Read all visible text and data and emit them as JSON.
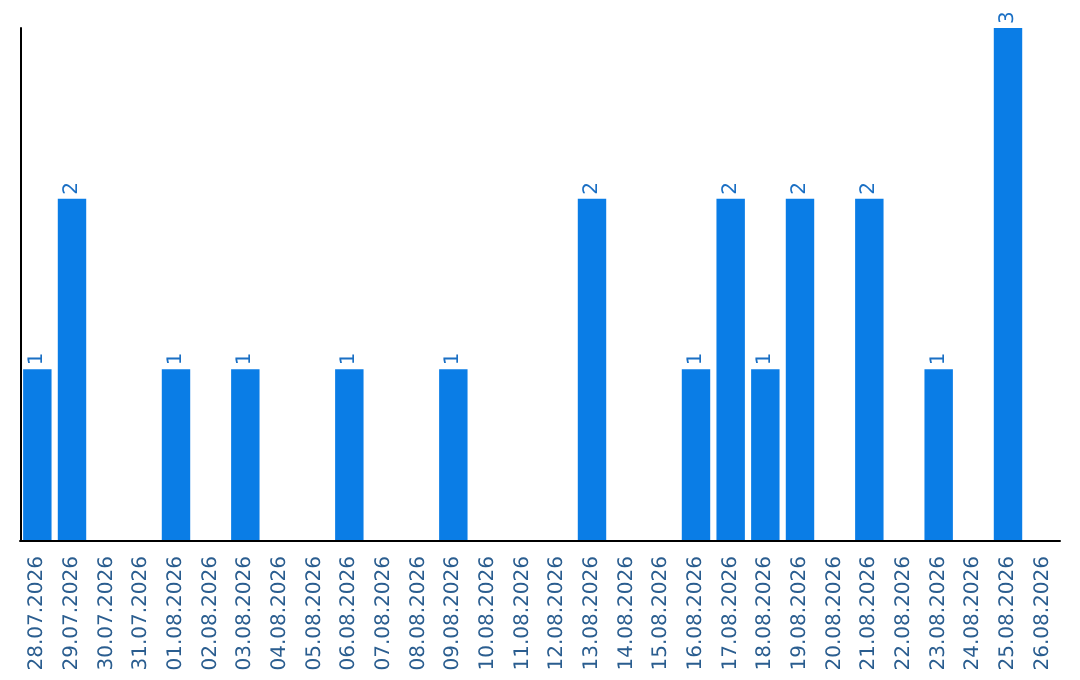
{
  "chart_data": {
    "type": "bar",
    "categories": [
      "28.07.2026",
      "29.07.2026",
      "30.07.2026",
      "31.07.2026",
      "01.08.2026",
      "02.08.2026",
      "03.08.2026",
      "04.08.2026",
      "05.08.2026",
      "06.08.2026",
      "07.08.2026",
      "08.08.2026",
      "09.08.2026",
      "10.08.2026",
      "11.08.2026",
      "12.08.2026",
      "13.08.2026",
      "14.08.2026",
      "15.08.2026",
      "16.08.2026",
      "17.08.2026",
      "18.08.2026",
      "19.08.2026",
      "20.08.2026",
      "21.08.2026",
      "22.08.2026",
      "23.08.2026",
      "24.08.2026",
      "25.08.2026",
      "26.08.2026"
    ],
    "values": [
      1,
      2,
      0,
      0,
      1,
      0,
      1,
      0,
      0,
      1,
      0,
      0,
      1,
      0,
      0,
      0,
      2,
      0,
      0,
      1,
      2,
      1,
      2,
      0,
      2,
      0,
      1,
      0,
      3,
      0
    ],
    "value_labels": [
      "1",
      "2",
      null,
      null,
      "1",
      null,
      "1",
      null,
      null,
      "1",
      null,
      null,
      "1",
      null,
      null,
      null,
      "2",
      null,
      null,
      "1",
      "2",
      "1",
      "2",
      null,
      "2",
      null,
      "1",
      null,
      "3",
      null
    ],
    "color": "#0a7de6",
    "tick_labels": "x"
  }
}
